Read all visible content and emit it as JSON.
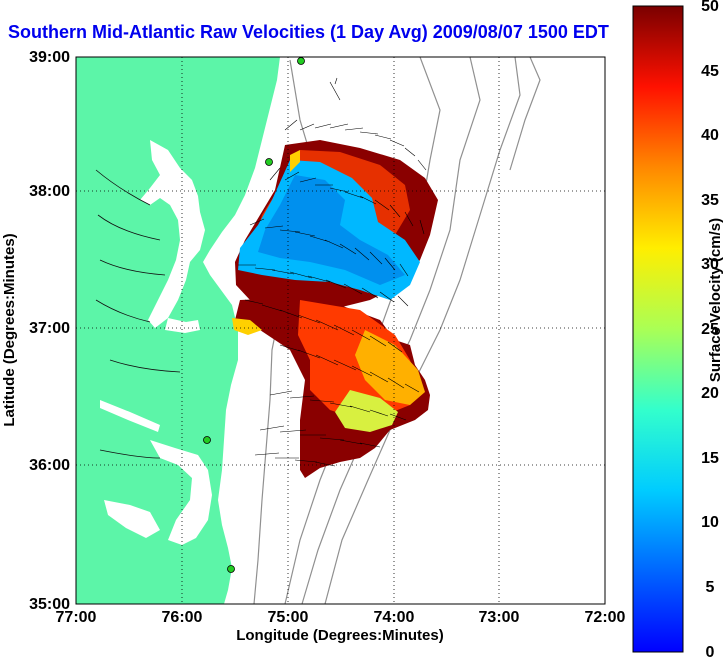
{
  "title": "Southern Mid-Atlantic Raw Velocities (1 Day Avg) 2009/08/07 1500 EDT",
  "map": {
    "x_label": "Longitude (Degrees:Minutes)",
    "y_label": "Latitude (Degrees:Minutes)",
    "x_ticks": [
      "77:00",
      "76:00",
      "75:00",
      "74:00",
      "73:00",
      "72:00"
    ],
    "y_ticks": [
      "39:00",
      "38:00",
      "37:00",
      "36:00",
      "35:00"
    ],
    "land_color": "#5cf5a8",
    "grid": true
  },
  "colorbar": {
    "label": "Surface Velocity (cm/s)",
    "ticks": [
      "50",
      "45",
      "40",
      "35",
      "30",
      "25",
      "20",
      "15",
      "10",
      "5",
      "0"
    ],
    "min": 0,
    "max": 50
  },
  "colors": {
    "title": "#0000ee",
    "bathymetry": "#909090"
  }
}
